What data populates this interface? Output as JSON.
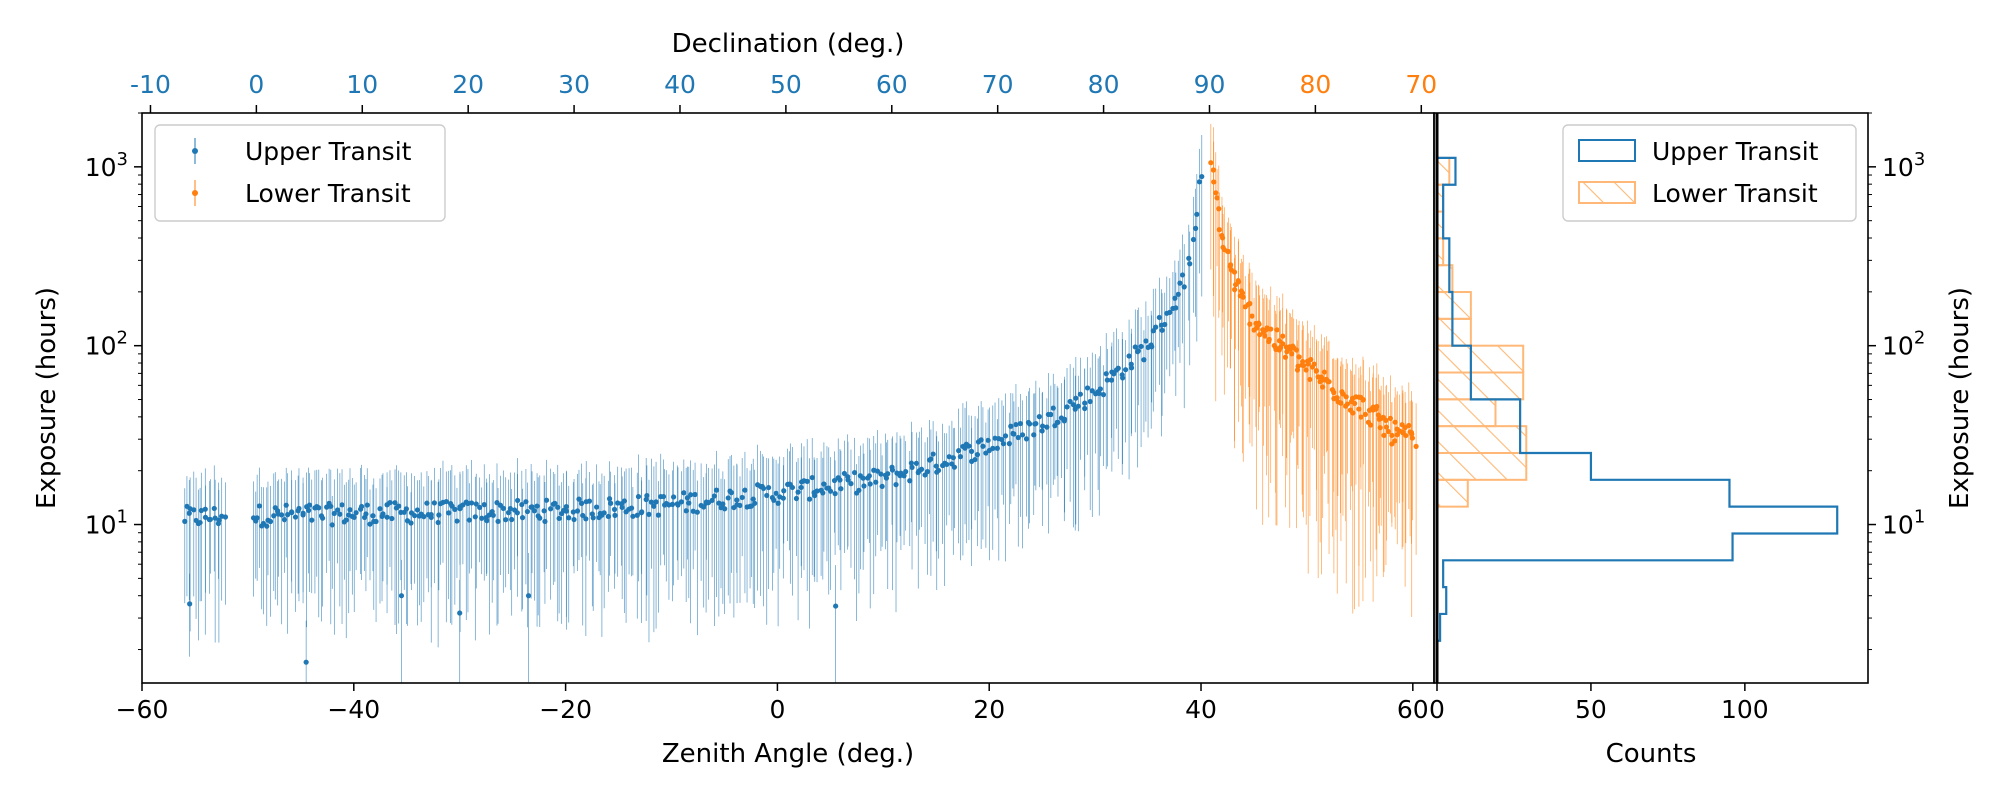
{
  "chart_data": [
    {
      "type": "scatter",
      "title": "",
      "xlabel": "Zenith Angle (deg.)",
      "ylabel": "Exposure (hours)",
      "top_axis_label": "Declination (deg.)",
      "xlim": [
        -60,
        62
      ],
      "ylim": [
        1.3,
        2000
      ],
      "yscale": "log",
      "x_ticks": [
        "−60",
        "−40",
        "−20",
        "0",
        "20",
        "40",
        "60"
      ],
      "x_tick_values": [
        -60,
        -40,
        -20,
        0,
        20,
        40,
        60
      ],
      "y_ticks": [
        {
          "value": 10,
          "base": "10",
          "exp": "1"
        },
        {
          "value": 100,
          "base": "10",
          "exp": "2"
        },
        {
          "value": 1000,
          "base": "10",
          "exp": "3"
        }
      ],
      "top_ticks": [
        {
          "x": -59.2,
          "label": "-10",
          "color": "#1f77b4"
        },
        {
          "x": -49.2,
          "label": "0",
          "color": "#1f77b4"
        },
        {
          "x": -39.2,
          "label": "10",
          "color": "#1f77b4"
        },
        {
          "x": -29.2,
          "label": "20",
          "color": "#1f77b4"
        },
        {
          "x": -19.2,
          "label": "30",
          "color": "#1f77b4"
        },
        {
          "x": -9.2,
          "label": "40",
          "color": "#1f77b4"
        },
        {
          "x": 0.8,
          "label": "50",
          "color": "#1f77b4"
        },
        {
          "x": 10.8,
          "label": "60",
          "color": "#1f77b4"
        },
        {
          "x": 20.8,
          "label": "70",
          "color": "#1f77b4"
        },
        {
          "x": 30.8,
          "label": "80",
          "color": "#1f77b4"
        },
        {
          "x": 40.8,
          "label": "90",
          "color": "#1f77b4"
        },
        {
          "x": 50.8,
          "label": "80",
          "color": "#ff7f0e"
        },
        {
          "x": 60.8,
          "label": "70",
          "color": "#ff7f0e"
        }
      ],
      "legend_position": "upper-left",
      "series": [
        {
          "name": "Upper Transit",
          "color": "#1f77b4",
          "trend": [
            [
              -56,
              11
            ],
            [
              -40,
              11.5
            ],
            [
              -20,
              12
            ],
            [
              -10,
              13
            ],
            [
              0,
              15
            ],
            [
              10,
              18
            ],
            [
              15,
              22
            ],
            [
              20,
              28
            ],
            [
              25,
              37
            ],
            [
              30,
              55
            ],
            [
              35,
              100
            ],
            [
              38,
              200
            ],
            [
              39.5,
              400
            ],
            [
              40,
              1000
            ]
          ],
          "scatter_rel": 0.14,
          "error_rel_low": 0.65,
          "error_rel_high": 0.6,
          "x_start": -56,
          "x_end": 40,
          "count": 460,
          "outliers": [
            [
              -55.5,
              3.6
            ],
            [
              -44.5,
              1.7
            ],
            [
              -35.5,
              4.0
            ],
            [
              -30,
              3.2
            ],
            [
              -23.5,
              4.0
            ],
            [
              5.5,
              3.5
            ]
          ]
        },
        {
          "name": "Lower Transit",
          "color": "#ff7f0e",
          "trend": [
            [
              41,
              1000
            ],
            [
              42,
              400
            ],
            [
              43,
              250
            ],
            [
              44,
              170
            ],
            [
              46,
              120
            ],
            [
              48,
              95
            ],
            [
              50,
              75
            ],
            [
              53,
              55
            ],
            [
              56,
              42
            ],
            [
              58,
              33
            ],
            [
              60,
              30
            ]
          ],
          "scatter_rel": 0.16,
          "error_rel_low": 0.75,
          "error_rel_high": 0.6,
          "x_start": 41,
          "x_end": 60.2,
          "count": 150,
          "outliers": []
        }
      ]
    },
    {
      "type": "histogram",
      "orientation": "horizontal",
      "xlabel": "Counts",
      "ylabel": "Exposure (hours)",
      "xlim": [
        0,
        140
      ],
      "x_ticks": [
        "0",
        "50",
        "100"
      ],
      "x_tick_values": [
        0,
        50,
        100
      ],
      "legend_position": "upper-right",
      "bin_edges_log10": [
        0.2,
        0.35,
        0.5,
        0.65,
        0.8,
        0.95,
        1.1,
        1.25,
        1.4,
        1.55,
        1.7,
        1.85,
        2.0,
        2.15,
        2.3,
        2.45,
        2.6,
        2.75,
        2.9,
        3.05,
        3.2
      ],
      "series": [
        {
          "name": "Upper Transit",
          "color": "#1f77b4",
          "style": "step",
          "counts": [
            0,
            1,
            3,
            2,
            96,
            130,
            95,
            50,
            27,
            27,
            11,
            11,
            5,
            5,
            4,
            4,
            2,
            2,
            6,
            0
          ]
        },
        {
          "name": "Lower Transit",
          "color": "#ff7f0e",
          "style": "hatched",
          "counts": [
            0,
            0,
            0,
            0,
            0,
            0,
            10,
            29,
            29,
            19,
            28,
            28,
            11,
            11,
            5,
            2,
            2,
            2,
            4,
            0
          ]
        }
      ]
    }
  ]
}
